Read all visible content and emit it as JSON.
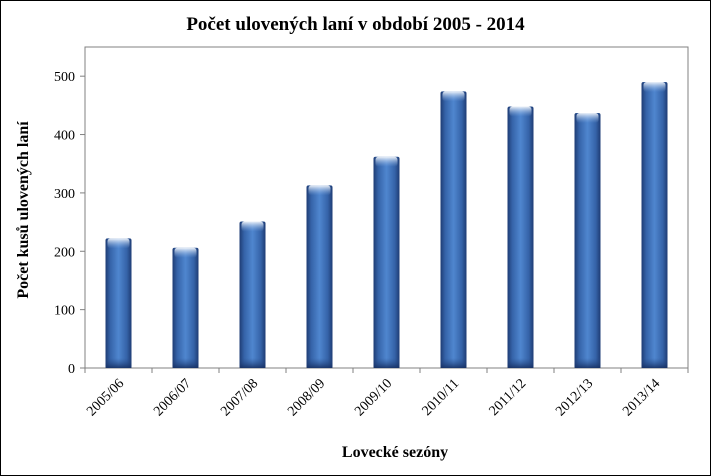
{
  "chart_data": {
    "type": "bar",
    "title": "Počet ulovených laní v období 2005 - 2014",
    "xlabel": "Lovecké sezóny",
    "ylabel": "Počet kusů ulovených laní",
    "categories": [
      "2005/06",
      "2006/07",
      "2007/08",
      "2008/09",
      "2009/10",
      "2010/11",
      "2011/12",
      "2012/13",
      "2013/14"
    ],
    "values": [
      222,
      206,
      251,
      313,
      362,
      474,
      448,
      437,
      490
    ],
    "ylim": [
      0,
      550
    ],
    "yticks": [
      0,
      100,
      200,
      300,
      400,
      500
    ],
    "grid": false,
    "legend": "none",
    "bar_color": "#3d6db3"
  }
}
